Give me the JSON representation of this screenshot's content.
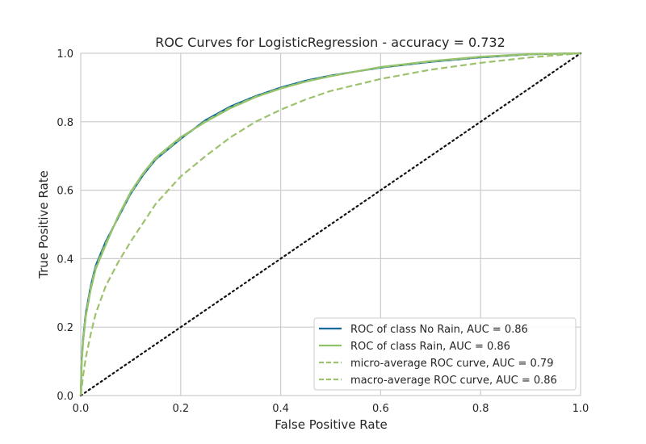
{
  "chart_data": {
    "type": "line",
    "title": "ROC Curves for LogisticRegression - accuracy = 0.732",
    "xlabel": "False Positive Rate",
    "ylabel": "True Positive Rate",
    "xlim": [
      0.0,
      1.0
    ],
    "ylim": [
      0.0,
      1.0
    ],
    "xticks": [
      "0.0",
      "0.2",
      "0.4",
      "0.6",
      "0.8",
      "1.0"
    ],
    "yticks": [
      "0.0",
      "0.2",
      "0.4",
      "0.6",
      "0.8",
      "1.0"
    ],
    "grid": true,
    "legend_position": "bottom-right",
    "series": [
      {
        "name": "ROC of class No Rain, AUC = 0.86",
        "color": "#0c6b9c",
        "style": "solid",
        "x": [
          0,
          0.002,
          0.005,
          0.01,
          0.02,
          0.03,
          0.05,
          0.075,
          0.1,
          0.125,
          0.15,
          0.2,
          0.25,
          0.3,
          0.35,
          0.4,
          0.45,
          0.5,
          0.6,
          0.7,
          0.8,
          0.9,
          1.0
        ],
        "y": [
          0,
          0.11,
          0.17,
          0.24,
          0.32,
          0.38,
          0.45,
          0.52,
          0.59,
          0.645,
          0.69,
          0.75,
          0.805,
          0.845,
          0.875,
          0.9,
          0.92,
          0.935,
          0.958,
          0.975,
          0.988,
          0.997,
          1.0
        ]
      },
      {
        "name": "ROC of class Rain, AUC = 0.86",
        "color": "#8fc36b",
        "style": "solid",
        "x": [
          0,
          0.002,
          0.005,
          0.01,
          0.02,
          0.03,
          0.05,
          0.075,
          0.1,
          0.125,
          0.15,
          0.2,
          0.25,
          0.3,
          0.35,
          0.4,
          0.45,
          0.5,
          0.6,
          0.7,
          0.8,
          0.9,
          1.0
        ],
        "y": [
          0,
          0.1,
          0.16,
          0.23,
          0.31,
          0.37,
          0.44,
          0.525,
          0.595,
          0.65,
          0.695,
          0.755,
          0.8,
          0.84,
          0.872,
          0.897,
          0.917,
          0.933,
          0.96,
          0.977,
          0.99,
          0.998,
          1.0
        ]
      },
      {
        "name": "micro-average ROC curve, AUC = 0.79",
        "color": "#9dc26d",
        "style": "dashed",
        "x": [
          0,
          0.005,
          0.01,
          0.02,
          0.03,
          0.05,
          0.075,
          0.1,
          0.15,
          0.2,
          0.25,
          0.3,
          0.35,
          0.4,
          0.45,
          0.5,
          0.6,
          0.7,
          0.8,
          0.9,
          1.0
        ],
        "y": [
          0,
          0.06,
          0.11,
          0.18,
          0.24,
          0.32,
          0.39,
          0.45,
          0.56,
          0.64,
          0.7,
          0.755,
          0.8,
          0.835,
          0.865,
          0.89,
          0.925,
          0.952,
          0.972,
          0.988,
          1.0
        ]
      },
      {
        "name": "macro-average ROC curve, AUC = 0.86",
        "color": "#9dc26d",
        "style": "dashed",
        "x": [
          0,
          0.002,
          0.005,
          0.01,
          0.02,
          0.03,
          0.05,
          0.075,
          0.1,
          0.125,
          0.15,
          0.2,
          0.25,
          0.3,
          0.35,
          0.4,
          0.45,
          0.5,
          0.6,
          0.7,
          0.8,
          0.9,
          1.0
        ],
        "y": [
          0,
          0.105,
          0.165,
          0.235,
          0.315,
          0.375,
          0.445,
          0.522,
          0.592,
          0.648,
          0.692,
          0.752,
          0.802,
          0.842,
          0.873,
          0.898,
          0.918,
          0.934,
          0.959,
          0.976,
          0.989,
          0.997,
          1.0
        ]
      },
      {
        "name": "",
        "color": "#111111",
        "style": "dotted",
        "x": [
          0,
          1
        ],
        "y": [
          0,
          1
        ]
      }
    ]
  }
}
